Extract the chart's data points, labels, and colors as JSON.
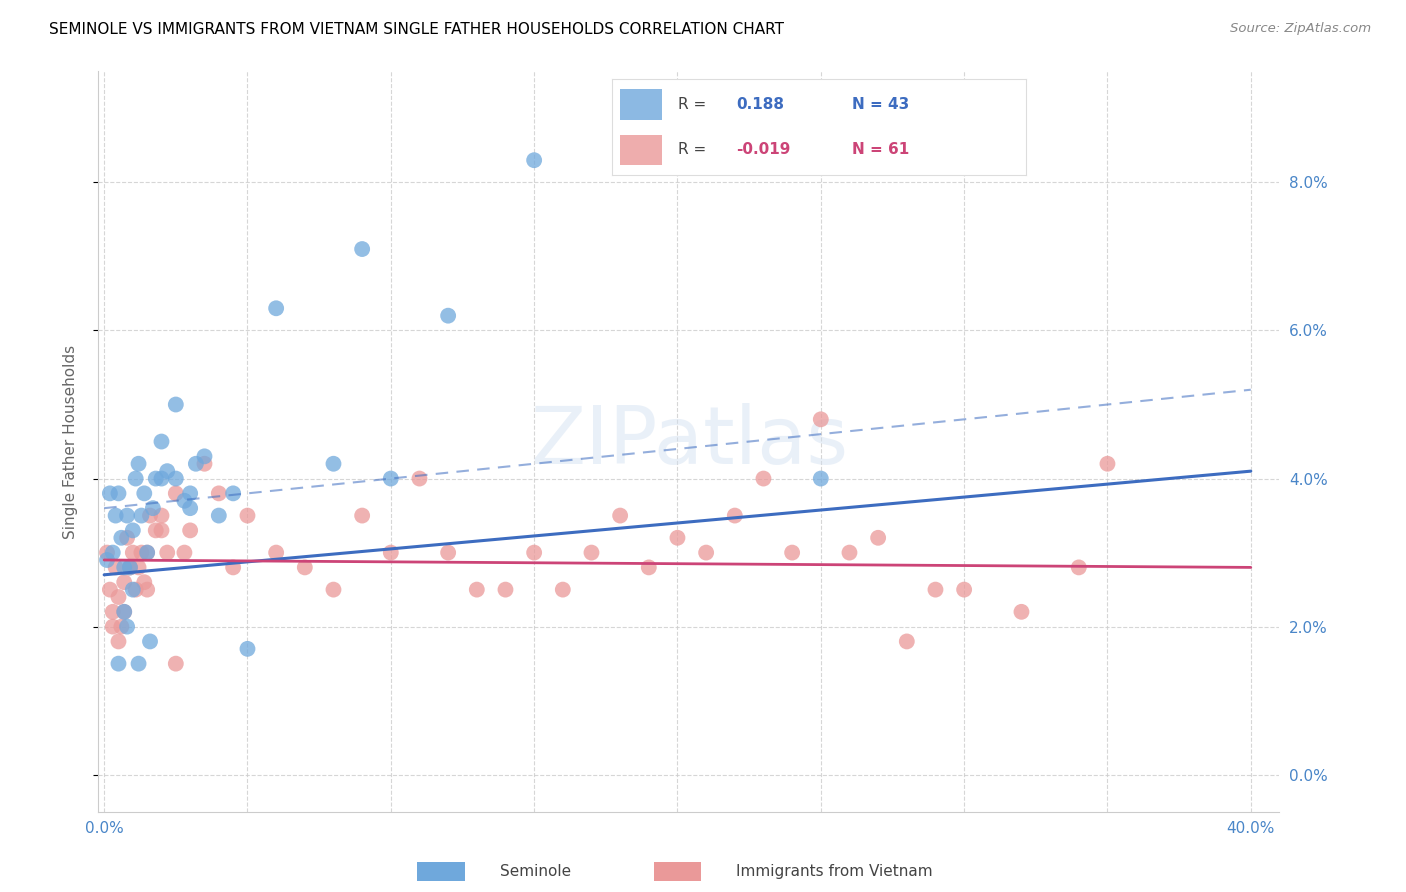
{
  "title": "SEMINOLE VS IMMIGRANTS FROM VIETNAM SINGLE FATHER HOUSEHOLDS CORRELATION CHART",
  "source": "Source: ZipAtlas.com",
  "ylabel": "Single Father Households",
  "xlim": [
    -0.002,
    0.41
  ],
  "ylim": [
    -0.005,
    0.095
  ],
  "yticks": [
    0.0,
    0.02,
    0.04,
    0.06,
    0.08
  ],
  "ytick_labels_right": [
    "0.0%",
    "2.0%",
    "4.0%",
    "6.0%",
    "8.0%"
  ],
  "xticks": [
    0.0,
    0.05,
    0.1,
    0.15,
    0.2,
    0.25,
    0.3,
    0.35,
    0.4
  ],
  "xtick_labels": [
    "0.0%",
    "",
    "",
    "",
    "",
    "",
    "",
    "",
    "40.0%"
  ],
  "seminole_R": 0.188,
  "seminole_N": 43,
  "vietnam_R": -0.019,
  "vietnam_N": 61,
  "seminole_color": "#6fa8dc",
  "vietnam_color": "#ea9999",
  "seminole_line_color": "#3d6cc0",
  "vietnam_line_color": "#cc4477",
  "seminole_line_x": [
    0.0,
    0.4
  ],
  "seminole_line_y": [
    0.027,
    0.041
  ],
  "vietnam_line_x": [
    0.0,
    0.4
  ],
  "vietnam_line_y": [
    0.029,
    0.028
  ],
  "dashed_line_x": [
    0.0,
    0.4
  ],
  "dashed_line_y": [
    0.036,
    0.052
  ],
  "seminole_x": [
    0.001,
    0.002,
    0.003,
    0.004,
    0.005,
    0.006,
    0.007,
    0.008,
    0.009,
    0.01,
    0.011,
    0.012,
    0.013,
    0.014,
    0.015,
    0.016,
    0.017,
    0.018,
    0.02,
    0.022,
    0.025,
    0.028,
    0.03,
    0.032,
    0.04,
    0.045,
    0.05,
    0.06,
    0.08,
    0.09,
    0.1,
    0.12,
    0.15,
    0.25,
    0.008,
    0.01,
    0.012,
    0.005,
    0.007,
    0.02,
    0.025,
    0.03,
    0.035
  ],
  "seminole_y": [
    0.029,
    0.038,
    0.03,
    0.035,
    0.038,
    0.032,
    0.028,
    0.035,
    0.028,
    0.033,
    0.04,
    0.042,
    0.035,
    0.038,
    0.03,
    0.018,
    0.036,
    0.04,
    0.04,
    0.041,
    0.04,
    0.037,
    0.038,
    0.042,
    0.035,
    0.038,
    0.017,
    0.063,
    0.042,
    0.071,
    0.04,
    0.062,
    0.083,
    0.04,
    0.02,
    0.025,
    0.015,
    0.015,
    0.022,
    0.045,
    0.05,
    0.036,
    0.043
  ],
  "vietnam_x": [
    0.001,
    0.002,
    0.003,
    0.004,
    0.005,
    0.006,
    0.007,
    0.008,
    0.009,
    0.01,
    0.011,
    0.012,
    0.013,
    0.014,
    0.015,
    0.016,
    0.018,
    0.02,
    0.022,
    0.025,
    0.028,
    0.03,
    0.035,
    0.04,
    0.045,
    0.05,
    0.06,
    0.07,
    0.08,
    0.09,
    0.1,
    0.11,
    0.12,
    0.13,
    0.14,
    0.15,
    0.16,
    0.17,
    0.18,
    0.19,
    0.2,
    0.21,
    0.22,
    0.23,
    0.24,
    0.25,
    0.26,
    0.27,
    0.28,
    0.29,
    0.3,
    0.32,
    0.34,
    0.35,
    0.003,
    0.005,
    0.007,
    0.009,
    0.015,
    0.02,
    0.025
  ],
  "vietnam_y": [
    0.03,
    0.025,
    0.022,
    0.028,
    0.024,
    0.02,
    0.026,
    0.032,
    0.028,
    0.03,
    0.025,
    0.028,
    0.03,
    0.026,
    0.03,
    0.035,
    0.033,
    0.035,
    0.03,
    0.038,
    0.03,
    0.033,
    0.042,
    0.038,
    0.028,
    0.035,
    0.03,
    0.028,
    0.025,
    0.035,
    0.03,
    0.04,
    0.03,
    0.025,
    0.025,
    0.03,
    0.025,
    0.03,
    0.035,
    0.028,
    0.032,
    0.03,
    0.035,
    0.04,
    0.03,
    0.048,
    0.03,
    0.032,
    0.018,
    0.025,
    0.025,
    0.022,
    0.028,
    0.042,
    0.02,
    0.018,
    0.022,
    0.028,
    0.025,
    0.033,
    0.015
  ],
  "watermark": "ZIPatlas",
  "background_color": "#ffffff",
  "grid_color": "#cccccc",
  "title_color": "#000000",
  "tick_label_color": "#4a86c8",
  "ylabel_color": "#666666"
}
